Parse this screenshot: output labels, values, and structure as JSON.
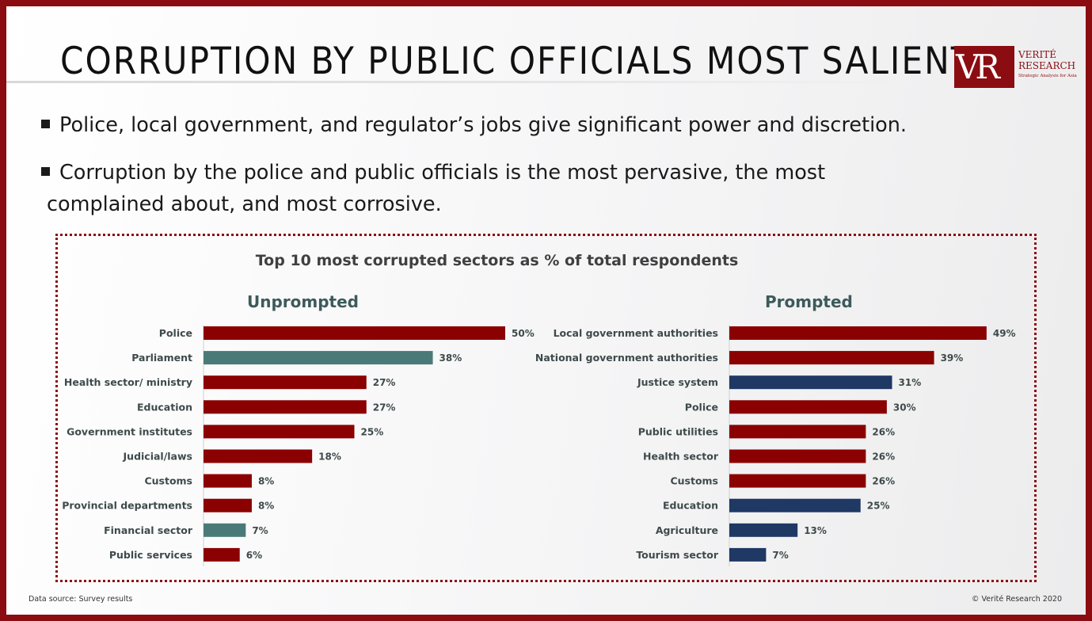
{
  "page": {
    "title": "CORRUPTION BY PUBLIC OFFICIALS MOST SALIENT",
    "logo": {
      "mark": "VR",
      "name": "VERITÉ RESEARCH",
      "tagline": "Strategic Analysis for Asia"
    },
    "bullets": [
      "Police, local government, and regulator’s jobs give significant power and discretion.",
      "Corruption by the police and public officials is the most pervasive, the most",
      "complained about, and most corrosive."
    ],
    "footer_source": "Data source: Survey results",
    "footer_copyright": "© Verité Research 2020"
  },
  "colors": {
    "maroon": "#8b0000",
    "teal": "#4a7a78",
    "navy": "#1f3864",
    "frame": "#8b0d12"
  },
  "chart_title": "Top 10 most corrupted sectors as % of total respondents",
  "chart_data": [
    {
      "type": "bar",
      "orientation": "horizontal",
      "title": "Unprompted",
      "categories": [
        "Police",
        "Parliament",
        "Health sector/ ministry",
        "Education",
        "Government institutes",
        "Judicial/laws",
        "Customs",
        "Provincial departments",
        "Financial sector",
        "Public services"
      ],
      "values": [
        50,
        38,
        27,
        27,
        25,
        18,
        8,
        8,
        7,
        6
      ],
      "labels": [
        "50%",
        "38%",
        "27%",
        "27%",
        "25%",
        "18%",
        "8%",
        "8%",
        "7%",
        "6%"
      ],
      "colors": [
        "maroon",
        "teal",
        "maroon",
        "maroon",
        "maroon",
        "maroon",
        "maroon",
        "maroon",
        "teal",
        "maroon"
      ],
      "xlim": [
        0,
        60
      ],
      "unit": "%"
    },
    {
      "type": "bar",
      "orientation": "horizontal",
      "title": "Prompted",
      "categories": [
        "Local government authorities",
        "National government authorities",
        "Justice system",
        "Police",
        "Public utilities",
        "Health sector",
        "Customs",
        "Education",
        "Agriculture",
        "Tourism sector"
      ],
      "values": [
        49,
        39,
        31,
        30,
        26,
        26,
        26,
        25,
        13,
        7
      ],
      "labels": [
        "49%",
        "39%",
        "31%",
        "30%",
        "26%",
        "26%",
        "26%",
        "25%",
        "13%",
        "7%"
      ],
      "colors": [
        "maroon",
        "maroon",
        "navy",
        "maroon",
        "maroon",
        "maroon",
        "maroon",
        "navy",
        "navy",
        "navy"
      ],
      "xlim": [
        0,
        60
      ],
      "unit": "%"
    }
  ]
}
